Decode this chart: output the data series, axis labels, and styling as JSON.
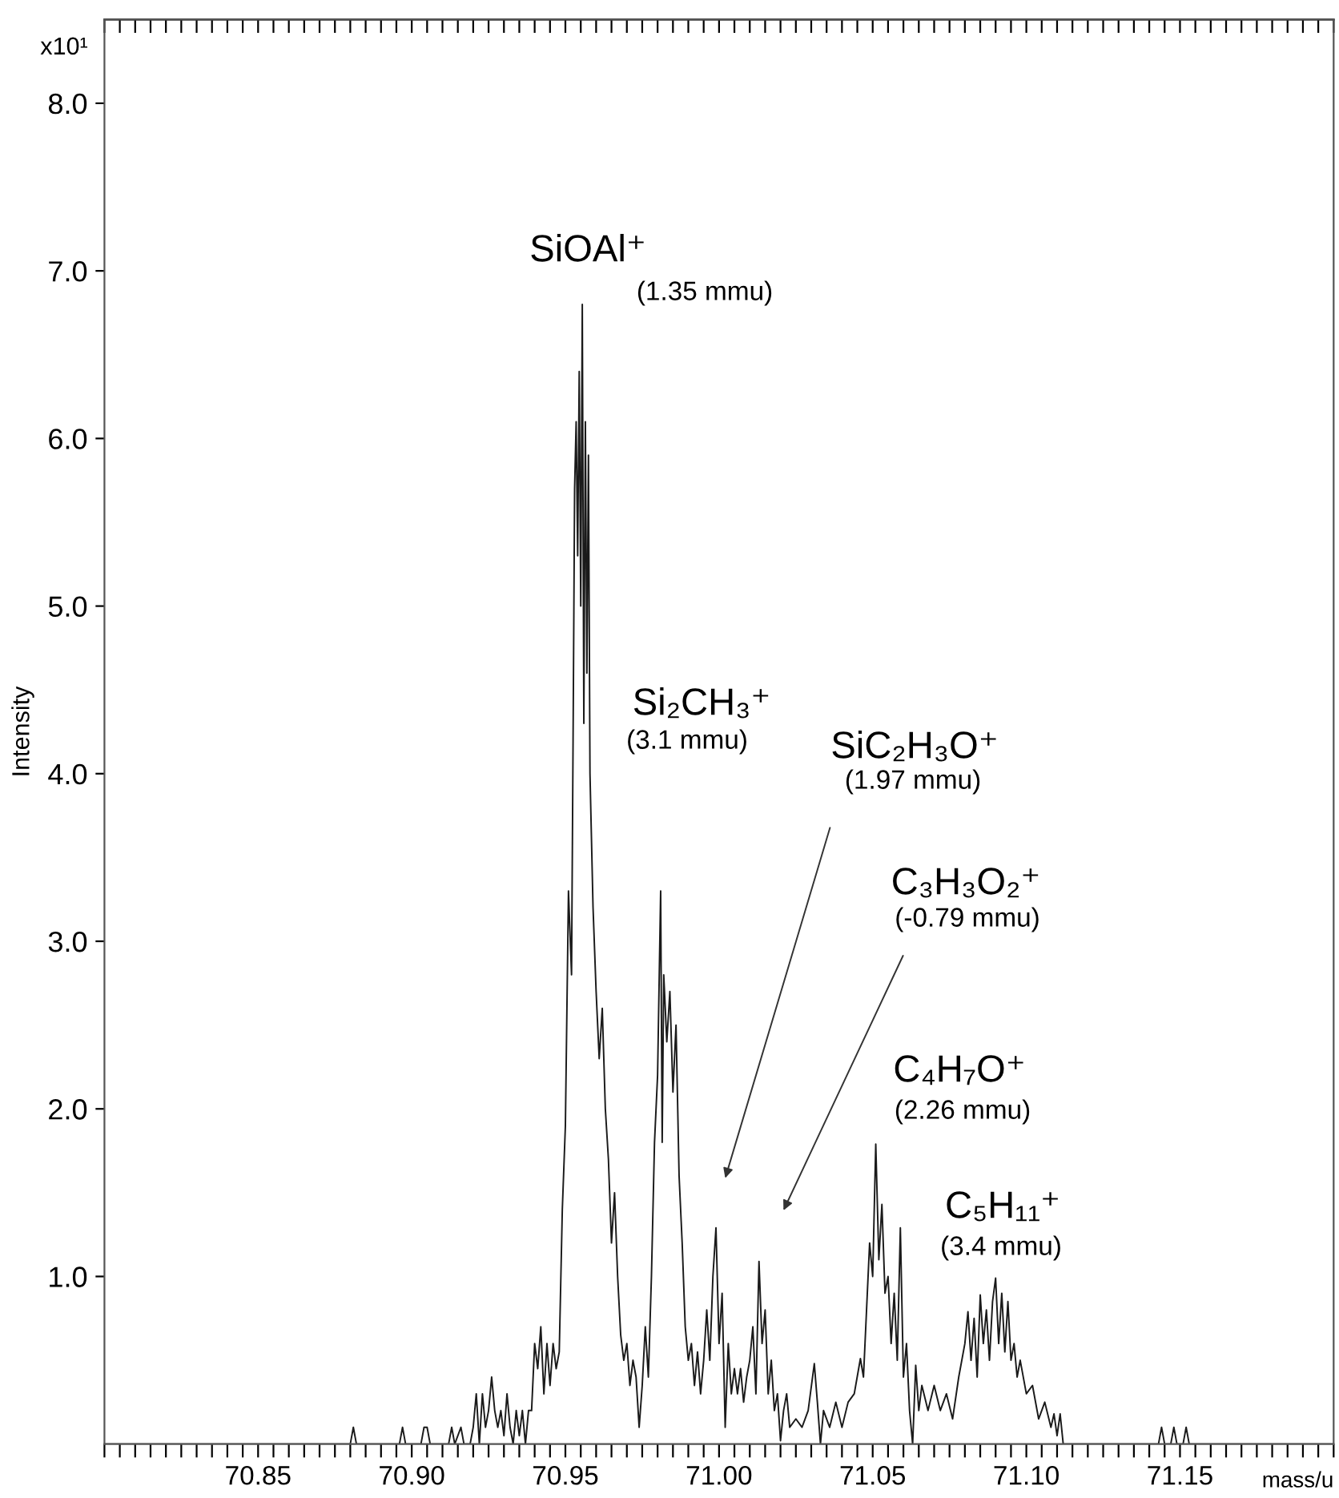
{
  "chart_data": {
    "type": "line",
    "xlabel": "mass/u",
    "ylabel": "Intensity",
    "xlim": [
      70.8,
      71.2
    ],
    "ylim": [
      0,
      8.5
    ],
    "xticks": [
      {
        "value": 70.8,
        "label": null
      },
      {
        "value": 70.805,
        "label": null
      },
      {
        "value": 70.81,
        "label": null
      },
      {
        "value": 70.815,
        "label": null
      },
      {
        "value": 70.82,
        "label": null
      },
      {
        "value": 70.825,
        "label": null
      },
      {
        "value": 70.83,
        "label": null
      },
      {
        "value": 70.835,
        "label": null
      },
      {
        "value": 70.84,
        "label": null
      },
      {
        "value": 70.845,
        "label": null
      },
      {
        "value": 70.85,
        "label": "70.85"
      },
      {
        "value": 70.855,
        "label": null
      },
      {
        "value": 70.86,
        "label": null
      },
      {
        "value": 70.865,
        "label": null
      },
      {
        "value": 70.87,
        "label": null
      },
      {
        "value": 70.875,
        "label": null
      },
      {
        "value": 70.88,
        "label": null
      },
      {
        "value": 70.885,
        "label": null
      },
      {
        "value": 70.89,
        "label": null
      },
      {
        "value": 70.895,
        "label": null
      },
      {
        "value": 70.9,
        "label": "70.90"
      },
      {
        "value": 70.905,
        "label": null
      },
      {
        "value": 70.91,
        "label": null
      },
      {
        "value": 70.915,
        "label": null
      },
      {
        "value": 70.92,
        "label": null
      },
      {
        "value": 70.925,
        "label": null
      },
      {
        "value": 70.93,
        "label": null
      },
      {
        "value": 70.935,
        "label": null
      },
      {
        "value": 70.94,
        "label": null
      },
      {
        "value": 70.945,
        "label": null
      },
      {
        "value": 70.95,
        "label": "70.95"
      },
      {
        "value": 70.955,
        "label": null
      },
      {
        "value": 70.96,
        "label": null
      },
      {
        "value": 70.965,
        "label": null
      },
      {
        "value": 70.97,
        "label": null
      },
      {
        "value": 70.975,
        "label": null
      },
      {
        "value": 70.98,
        "label": null
      },
      {
        "value": 70.985,
        "label": null
      },
      {
        "value": 70.99,
        "label": null
      },
      {
        "value": 70.995,
        "label": null
      },
      {
        "value": 71.0,
        "label": "71.00"
      },
      {
        "value": 71.005,
        "label": null
      },
      {
        "value": 71.01,
        "label": null
      },
      {
        "value": 71.015,
        "label": null
      },
      {
        "value": 71.02,
        "label": null
      },
      {
        "value": 71.025,
        "label": null
      },
      {
        "value": 71.03,
        "label": null
      },
      {
        "value": 71.035,
        "label": null
      },
      {
        "value": 71.04,
        "label": null
      },
      {
        "value": 71.045,
        "label": null
      },
      {
        "value": 71.05,
        "label": "71.05"
      },
      {
        "value": 71.055,
        "label": null
      },
      {
        "value": 71.06,
        "label": null
      },
      {
        "value": 71.065,
        "label": null
      },
      {
        "value": 71.07,
        "label": null
      },
      {
        "value": 71.075,
        "label": null
      },
      {
        "value": 71.08,
        "label": null
      },
      {
        "value": 71.085,
        "label": null
      },
      {
        "value": 71.09,
        "label": null
      },
      {
        "value": 71.095,
        "label": null
      },
      {
        "value": 71.1,
        "label": "71.10"
      },
      {
        "value": 71.105,
        "label": null
      },
      {
        "value": 71.11,
        "label": null
      },
      {
        "value": 71.115,
        "label": null
      },
      {
        "value": 71.12,
        "label": null
      },
      {
        "value": 71.125,
        "label": null
      },
      {
        "value": 71.13,
        "label": null
      },
      {
        "value": 71.135,
        "label": null
      },
      {
        "value": 71.14,
        "label": null
      },
      {
        "value": 71.145,
        "label": null
      },
      {
        "value": 71.15,
        "label": "71.15"
      },
      {
        "value": 71.155,
        "label": null
      },
      {
        "value": 71.16,
        "label": null
      },
      {
        "value": 71.165,
        "label": null
      },
      {
        "value": 71.17,
        "label": null
      },
      {
        "value": 71.175,
        "label": null
      },
      {
        "value": 71.18,
        "label": null
      },
      {
        "value": 71.185,
        "label": null
      },
      {
        "value": 71.19,
        "label": null
      },
      {
        "value": 71.195,
        "label": null
      },
      {
        "value": 71.2,
        "label": null
      }
    ],
    "yticks": [
      {
        "value": 1,
        "label": "1.0"
      },
      {
        "value": 2,
        "label": "2.0"
      },
      {
        "value": 3,
        "label": "3.0"
      },
      {
        "value": 4,
        "label": "4.0"
      },
      {
        "value": 5,
        "label": "5.0"
      },
      {
        "value": 6,
        "label": "6.0"
      },
      {
        "value": 7,
        "label": "7.0"
      },
      {
        "value": 8,
        "label": "8.0"
      }
    ],
    "grid": false,
    "legend": false,
    "marker": "none",
    "line_style": "solid",
    "series": [
      {
        "color": "#1a1a1a",
        "x": [
          70.8,
          70.88,
          70.881,
          70.882,
          70.896,
          70.897,
          70.898,
          70.903,
          70.904,
          70.905,
          70.906,
          70.912,
          70.913,
          70.914,
          70.916,
          70.917,
          70.919,
          70.92,
          70.921,
          70.922,
          70.923,
          70.924,
          70.925,
          70.926,
          70.927,
          70.928,
          70.929,
          70.93,
          70.931,
          70.932,
          70.933,
          70.934,
          70.935,
          70.936,
          70.937,
          70.938,
          70.939,
          70.94,
          70.941,
          70.942,
          70.943,
          70.944,
          70.945,
          70.946,
          70.947,
          70.948,
          70.949,
          70.95,
          70.951,
          70.952,
          70.9525,
          70.953,
          70.9535,
          70.954,
          70.9545,
          70.955,
          70.9555,
          70.956,
          70.9565,
          70.957,
          70.9575,
          70.958,
          70.9585,
          70.959,
          70.96,
          70.961,
          70.962,
          70.963,
          70.964,
          70.965,
          70.966,
          70.967,
          70.968,
          70.969,
          70.97,
          70.971,
          70.972,
          70.973,
          70.974,
          70.975,
          70.976,
          70.977,
          70.978,
          70.979,
          70.98,
          70.981,
          70.9815,
          70.982,
          70.983,
          70.984,
          70.985,
          70.986,
          70.987,
          70.988,
          70.989,
          70.99,
          70.991,
          70.992,
          70.993,
          70.994,
          70.995,
          70.996,
          70.997,
          70.998,
          70.999,
          71.0,
          71.001,
          71.002,
          71.003,
          71.004,
          71.005,
          71.006,
          71.007,
          71.008,
          71.009,
          71.01,
          71.011,
          71.012,
          71.013,
          71.014,
          71.015,
          71.016,
          71.017,
          71.018,
          71.019,
          71.02,
          71.021,
          71.022,
          71.023,
          71.025,
          71.027,
          71.029,
          71.031,
          71.032,
          71.033,
          71.034,
          71.036,
          71.038,
          71.04,
          71.042,
          71.044,
          71.046,
          71.047,
          71.048,
          71.049,
          71.05,
          71.051,
          71.052,
          71.053,
          71.054,
          71.055,
          71.056,
          71.057,
          71.058,
          71.059,
          71.06,
          71.061,
          71.062,
          71.063,
          71.064,
          71.065,
          71.066,
          71.068,
          71.07,
          71.072,
          71.074,
          71.076,
          71.078,
          71.08,
          71.081,
          71.082,
          71.083,
          71.084,
          71.085,
          71.086,
          71.087,
          71.088,
          71.089,
          71.09,
          71.091,
          71.092,
          71.093,
          71.094,
          71.095,
          71.096,
          71.097,
          71.098,
          71.1,
          71.102,
          71.104,
          71.106,
          71.108,
          71.109,
          71.11,
          71.111,
          71.112,
          71.143,
          71.144,
          71.145,
          71.147,
          71.148,
          71.149,
          71.151,
          71.152,
          71.153,
          71.2
        ],
        "values": [
          0,
          0,
          0.1,
          0,
          0,
          0.1,
          0,
          0,
          0.1,
          0.1,
          0,
          0,
          0.1,
          0,
          0.1,
          0,
          0,
          0.1,
          0.3,
          0,
          0.3,
          0.1,
          0.2,
          0.4,
          0.2,
          0.1,
          0.2,
          0.05,
          0.3,
          0.1,
          0,
          0.2,
          0.05,
          0.2,
          0,
          0.2,
          0.2,
          0.6,
          0.45,
          0.7,
          0.3,
          0.6,
          0.35,
          0.6,
          0.45,
          0.55,
          1.4,
          1.9,
          3.3,
          2.8,
          4.2,
          5.7,
          6.1,
          5.3,
          6.4,
          5.0,
          6.8,
          4.3,
          6.1,
          4.6,
          5.9,
          4.0,
          3.6,
          3.2,
          2.7,
          2.3,
          2.6,
          2.0,
          1.7,
          1.2,
          1.5,
          1.0,
          0.65,
          0.5,
          0.6,
          0.35,
          0.5,
          0.4,
          0.1,
          0.35,
          0.7,
          0.4,
          1.0,
          1.8,
          2.2,
          3.3,
          1.8,
          2.8,
          2.4,
          2.7,
          2.1,
          2.5,
          1.6,
          1.2,
          0.7,
          0.5,
          0.6,
          0.35,
          0.55,
          0.3,
          0.5,
          0.8,
          0.5,
          1.0,
          1.29,
          0.6,
          0.9,
          0.1,
          0.6,
          0.3,
          0.45,
          0.3,
          0.45,
          0.25,
          0.4,
          0.5,
          0.7,
          0.3,
          1.09,
          0.6,
          0.8,
          0.3,
          0.5,
          0.2,
          0.3,
          0.02,
          0.2,
          0.3,
          0.1,
          0.15,
          0.1,
          0.2,
          0.48,
          0.25,
          0,
          0.2,
          0.1,
          0.25,
          0.1,
          0.25,
          0.3,
          0.51,
          0.4,
          0.8,
          1.2,
          1.0,
          1.79,
          1.1,
          1.43,
          0.9,
          1.0,
          0.6,
          0.9,
          0.5,
          1.29,
          0.4,
          0.6,
          0.2,
          0,
          0.47,
          0.2,
          0.35,
          0.2,
          0.35,
          0.2,
          0.3,
          0.15,
          0.4,
          0.6,
          0.79,
          0.5,
          0.75,
          0.4,
          0.89,
          0.6,
          0.8,
          0.5,
          0.85,
          0.99,
          0.6,
          0.9,
          0.55,
          0.85,
          0.5,
          0.6,
          0.4,
          0.5,
          0.3,
          0.35,
          0.15,
          0.25,
          0.1,
          0.18,
          0.05,
          0.18,
          0,
          0,
          0.1,
          0,
          0,
          0.1,
          0,
          0,
          0.1,
          0,
          0
        ]
      }
    ],
    "annotations": [
      "x10¹",
      "SiOAl⁺",
      "(1.35 mmu)",
      "Si₂CH₃⁺",
      "(3.1 mmu)",
      "SiC₂H₃O⁺",
      "(1.97 mmu)",
      "C₃H₃O₂⁺",
      "(-0.79 mmu)",
      "C₄H₇O⁺",
      "(2.26 mmu)",
      "C₅H₁₁⁺",
      "(3.4 mmu)"
    ]
  }
}
